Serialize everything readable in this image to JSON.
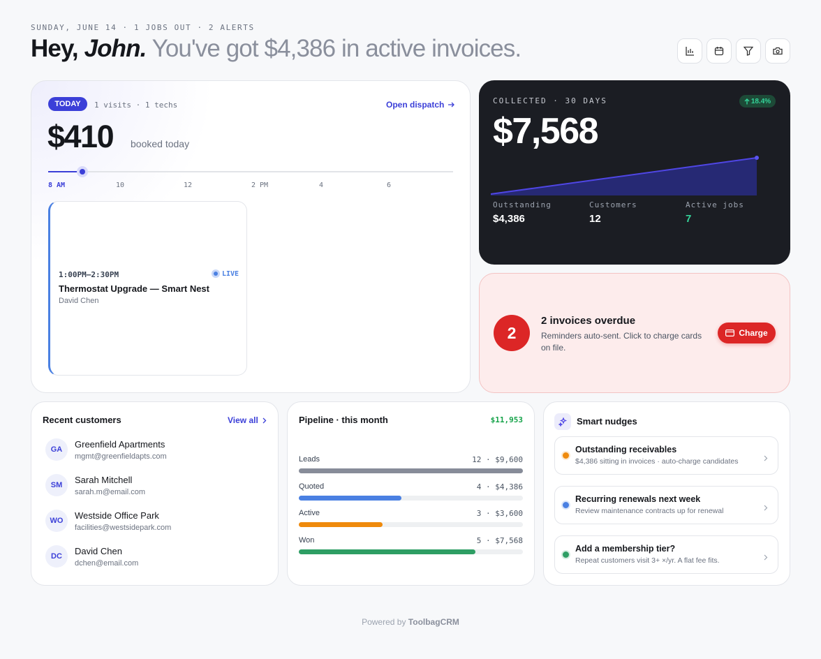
{
  "header": {
    "eyebrow": "SUNDAY, JUNE 14 · 1 JOBS OUT · 2 ALERTS",
    "greeting": "Hey,",
    "name": "John.",
    "summary": "You've got $4,386 in active invoices."
  },
  "today": {
    "badge": "TODAY",
    "meta": "1 visits · 1 techs",
    "link": "Open dispatch",
    "amount": "$410",
    "amount_note": "booked today",
    "timeline": [
      "8 AM",
      "10",
      "12",
      "2 PM",
      "4",
      "6"
    ],
    "job": {
      "time": "1:00PM–2:30PM",
      "status": "LIVE",
      "title": "Thermostat Upgrade — Smart Nest",
      "tech": "David Chen"
    }
  },
  "collected": {
    "label": "COLLECTED · 30 DAYS",
    "change": "18.4%",
    "amount": "$7,568",
    "stats": [
      {
        "label": "Outstanding",
        "value": "$4,386"
      },
      {
        "label": "Customers",
        "value": "12"
      },
      {
        "label": "Active jobs",
        "value": "7"
      }
    ]
  },
  "overdue": {
    "count": "2",
    "title": "2 invoices overdue",
    "text": "Reminders auto-sent. Click to charge cards on file.",
    "action": "Charge"
  },
  "customers": {
    "title": "Recent customers",
    "link": "View all",
    "items": [
      {
        "initials": "GA",
        "name": "Greenfield Apartments",
        "email": "mgmt@greenfieldapts.com"
      },
      {
        "initials": "SM",
        "name": "Sarah Mitchell",
        "email": "sarah.m@email.com"
      },
      {
        "initials": "WO",
        "name": "Westside Office Park",
        "email": "facilities@westsidepark.com"
      },
      {
        "initials": "DC",
        "name": "David Chen",
        "email": "dchen@email.com"
      }
    ]
  },
  "pipeline": {
    "title": "Pipeline · this month",
    "total": "$11,953",
    "stages": [
      {
        "name": "Leads",
        "detail": "12 · $9,600",
        "amount": 9600,
        "color": "#878c99"
      },
      {
        "name": "Quoted",
        "detail": "4 · $4,386",
        "amount": 4386,
        "color": "#4a80e2"
      },
      {
        "name": "Active",
        "detail": "3 · $3,600",
        "amount": 3600,
        "color": "#ef8a0c"
      },
      {
        "name": "Won",
        "detail": "5 · $7,568",
        "amount": 7568,
        "color": "#2e9e64"
      }
    ]
  },
  "nudges": {
    "title": "Smart nudges",
    "items": [
      {
        "title": "Outstanding receivables",
        "text": "$4,386 sitting in invoices · auto-charge candidates",
        "color": "#ef8a0c"
      },
      {
        "title": "Recurring renewals next week",
        "text": "Review maintenance contracts up for renewal",
        "color": "#4a80e2"
      },
      {
        "title": "Add a membership tier?",
        "text": "Repeat customers visit 3+ ×/yr. A flat fee fits.",
        "color": "#2e9e64"
      }
    ]
  },
  "footer": {
    "prefix": "Powered by",
    "brand": "ToolbagCRM"
  }
}
